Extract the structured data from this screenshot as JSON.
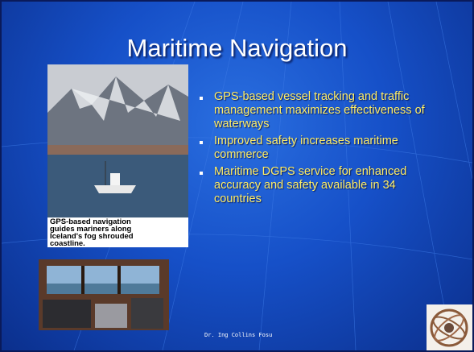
{
  "slide": {
    "title": "Maritime Navigation",
    "bullets": [
      "GPS-based vessel tracking and traffic management maximizes effectiveness of waterways",
      "Improved safety increases maritime commerce",
      "Maritime DGPS service for enhanced accuracy and safety available in 34 countries"
    ],
    "photo_caption": [
      "GPS-based navigation",
      "guides mariners along",
      "Iceland's fog shrouded",
      "coastline."
    ],
    "footer": "Dr. Ing Collins Fosu"
  }
}
